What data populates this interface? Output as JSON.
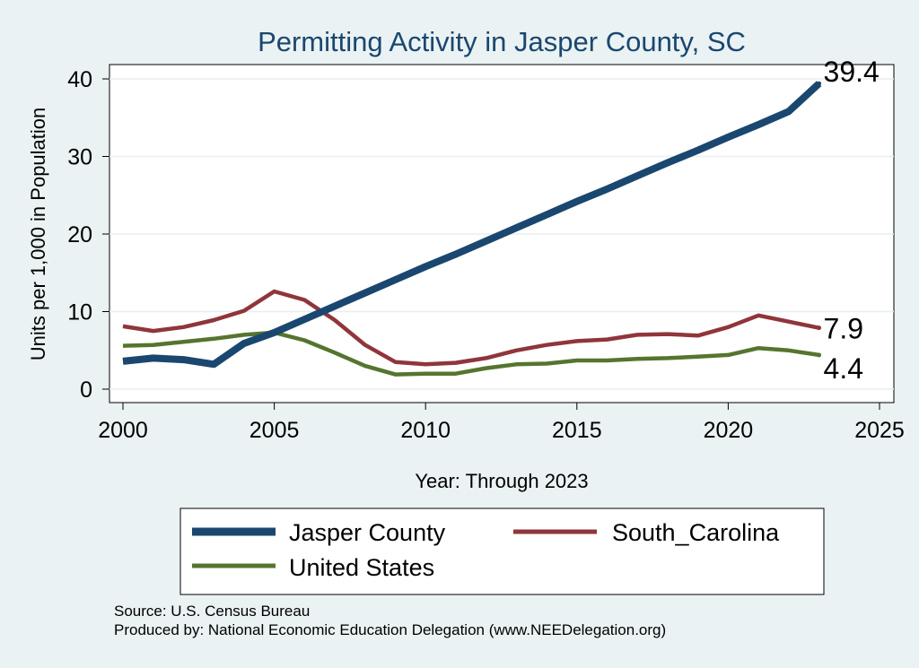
{
  "chart_data": {
    "type": "line",
    "title": "Permitting Activity in Jasper County, SC",
    "xlabel": "Year: Through 2023",
    "ylabel": "Units per 1,000 in Population",
    "xlim": [
      2000,
      2025
    ],
    "ylim": [
      0,
      40
    ],
    "xticks": [
      2000,
      2005,
      2010,
      2015,
      2020,
      2025
    ],
    "yticks": [
      0,
      10,
      20,
      30,
      40
    ],
    "grid": true,
    "legend_position": "bottom",
    "x": [
      2000,
      2001,
      2002,
      2003,
      2004,
      2005,
      2006,
      2007,
      2008,
      2009,
      2010,
      2011,
      2012,
      2013,
      2014,
      2015,
      2016,
      2017,
      2018,
      2019,
      2020,
      2021,
      2022,
      2023
    ],
    "series": [
      {
        "name": "Jasper County",
        "color": "#1a476f",
        "width": "thick",
        "values": [
          3.6,
          4.0,
          3.8,
          3.2,
          5.9,
          7.3,
          9.0,
          10.7,
          12.4,
          14.1,
          15.8,
          17.4,
          19.1,
          20.8,
          22.5,
          24.2,
          25.8,
          27.5,
          29.2,
          30.8,
          32.5,
          34.1,
          35.8,
          39.4
        ],
        "end_label": "39.4"
      },
      {
        "name": "South_Carolina",
        "color": "#90353b",
        "width": "medium",
        "values": [
          8.1,
          7.5,
          8.0,
          8.9,
          10.1,
          12.6,
          11.5,
          8.9,
          5.7,
          3.5,
          3.2,
          3.4,
          4.0,
          5.0,
          5.7,
          6.2,
          6.4,
          7.0,
          7.1,
          6.9,
          8.0,
          9.5,
          8.7,
          7.9
        ],
        "end_label": "7.9"
      },
      {
        "name": "United States",
        "color": "#55752f",
        "width": "medium",
        "values": [
          5.6,
          5.7,
          6.1,
          6.5,
          7.0,
          7.3,
          6.3,
          4.7,
          3.0,
          1.9,
          2.0,
          2.0,
          2.7,
          3.2,
          3.3,
          3.7,
          3.7,
          3.9,
          4.0,
          4.2,
          4.4,
          5.3,
          5.0,
          4.4
        ],
        "end_label": "4.4"
      }
    ]
  },
  "source_note": {
    "line1": "Source: U.S. Census Bureau",
    "line2": "Produced by: National Economic Education Delegation (www.NEEDelegation.org)"
  }
}
